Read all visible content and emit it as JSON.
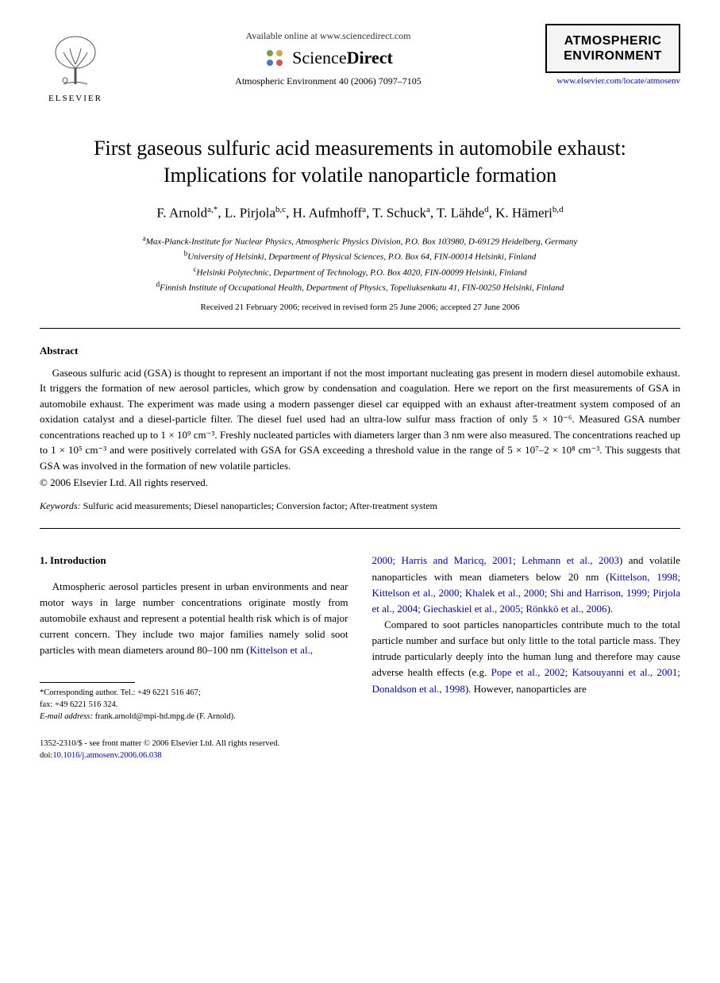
{
  "header": {
    "publisher_logo_text": "ELSEVIER",
    "available_online": "Available online at www.sciencedirect.com",
    "sciencedirect_prefix": "Science",
    "sciencedirect_suffix": "Direct",
    "journal_box_line1": "ATMOSPHERIC",
    "journal_box_line2": "ENVIRONMENT",
    "citation": "Atmospheric Environment 40 (2006) 7097–7105",
    "journal_url": "www.elsevier.com/locate/atmosenv"
  },
  "title": "First gaseous sulfuric acid measurements in automobile exhaust: Implications for volatile nanoparticle formation",
  "authors_html": "F. Arnold<sup>a,*</sup>, L. Pirjola<sup>b,c</sup>, H. Aufmhoff<sup>a</sup>, T. Schuck<sup>a</sup>, T. Lähde<sup>d</sup>, K. Hämeri<sup>b,d</sup>",
  "affiliations": [
    {
      "sup": "a",
      "text": "Max-Planck-Institute for Nuclear Physics, Atmospheric Physics Division, P.O. Box 103980, D-69129 Heidelberg, Germany"
    },
    {
      "sup": "b",
      "text": "University of Helsinki, Department of Physical Sciences, P.O. Box 64, FIN-00014 Helsinki, Finland"
    },
    {
      "sup": "c",
      "text": "Helsinki Polytechnic, Department of Technology, P.O. Box 4020, FIN-00099 Helsinki, Finland"
    },
    {
      "sup": "d",
      "text": "Finnish Institute of Occupational Health, Department of Physics, Topeliuksenkatu 41, FIN-00250 Helsinki, Finland"
    }
  ],
  "dates": "Received 21 February 2006; received in revised form 25 June 2006; accepted 27 June 2006",
  "abstract": {
    "heading": "Abstract",
    "text": "Gaseous sulfuric acid (GSA) is thought to represent an important if not the most important nucleating gas present in modern diesel automobile exhaust. It triggers the formation of new aerosol particles, which grow by condensation and coagulation. Here we report on the first measurements of GSA in automobile exhaust. The experiment was made using a modern passenger diesel car equipped with an exhaust after-treatment system composed of an oxidation catalyst and a diesel-particle filter. The diesel fuel used had an ultra-low sulfur mass fraction of only 5 × 10⁻⁶. Measured GSA number concentrations reached up to 1 × 10⁹ cm⁻³. Freshly nucleated particles with diameters larger than 3 nm were also measured. The concentrations reached up to 1 × 10⁵ cm⁻³ and were positively correlated with GSA for GSA exceeding a threshold value in the range of 5 × 10⁷–2 × 10⁸ cm⁻³. This suggests that GSA was involved in the formation of new volatile particles.",
    "copyright": "© 2006 Elsevier Ltd. All rights reserved."
  },
  "keywords": {
    "label": "Keywords:",
    "text": " Sulfuric acid measurements; Diesel nanoparticles; Conversion factor; After-treatment system"
  },
  "section1": {
    "heading": "1. Introduction",
    "col1_para1_pre": "Atmospheric aerosol particles present in urban environments and near motor ways in large number concentrations originate mostly from automobile exhaust and represent a potential health risk which is of major current concern. They include two major families namely solid soot particles with mean diameters around 80–100 nm (",
    "col1_ref1": "Kittelson et al.,",
    "col2_refs1": "2000; Harris and Maricq, 2001; Lehmann et al., 2003",
    "col2_mid1": ") and volatile nanoparticles with mean diameters below 20 nm (",
    "col2_refs2": "Kittelson, 1998; Kittelson et al., 2000; Khalek et al., 2000; Shi and Harrison, 1999; Pirjola et al., 2004; Giechaskiel et al., 2005; Rönkkö et al., 2006",
    "col2_mid2": ").",
    "col2_para2_pre": "Compared to soot particles nanoparticles contribute much to the total particle number and surface but only little to the total particle mass. They intrude particularly deeply into the human lung and therefore may cause adverse health effects (e.g. ",
    "col2_refs3": "Pope et al., 2002; Katsouyanni et al., 2001; Donaldson et al., 1998",
    "col2_para2_post": "). However, nanoparticles are"
  },
  "footnote": {
    "corresponding": "*Corresponding author. Tel.: +49 6221 516 467;",
    "fax": "fax: +49 6221 516 324.",
    "email_label": "E-mail address:",
    "email": " frank.arnold@mpi-hd.mpg.de (F. Arnold)."
  },
  "bottom": {
    "issn_line": "1352-2310/$ - see front matter © 2006 Elsevier Ltd. All rights reserved.",
    "doi_label": "doi:",
    "doi": "10.1016/j.atmosenv.2006.06.038"
  },
  "colors": {
    "link": "#0000cc",
    "text": "#000000",
    "background": "#ffffff",
    "box_bg": "#f5f5f5"
  }
}
